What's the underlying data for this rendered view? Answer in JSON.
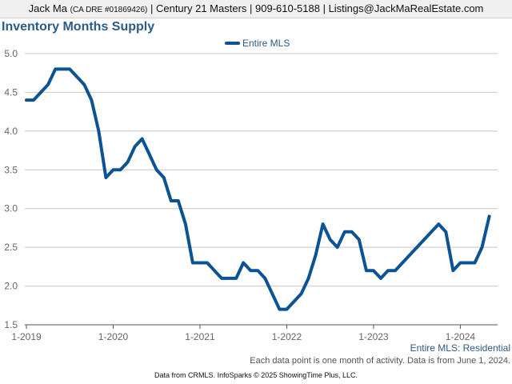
{
  "header": {
    "agent_name": "Jack Ma",
    "dre": "(CA DRE #01869426)",
    "rest": "| Century 21 Masters | 909-610-5188 | Listings@JackMaRealEstate.com"
  },
  "chart_data": {
    "type": "line",
    "title": "Inventory Months Supply",
    "xlabel": "",
    "ylabel": "",
    "x_start": "2019-01",
    "x_tick_labels": [
      "1-2019",
      "1-2020",
      "1-2021",
      "1-2022",
      "1-2023",
      "1-2024"
    ],
    "y_ticks": [
      1.5,
      2.0,
      2.5,
      3.0,
      3.5,
      4.0,
      4.5,
      5.0
    ],
    "y_tick_labels": [
      "1.5",
      "2.0",
      "2.5",
      "3.0",
      "3.5",
      "4.0",
      "4.5",
      "5.0"
    ],
    "ylim": [
      1.5,
      5.0
    ],
    "grid": true,
    "legend_position": "top-center",
    "series": [
      {
        "name": "Entire MLS",
        "color": "#0b5394",
        "values": [
          4.4,
          4.4,
          4.5,
          4.6,
          4.8,
          4.8,
          4.8,
          4.7,
          4.6,
          4.4,
          4.0,
          3.4,
          3.5,
          3.5,
          3.6,
          3.8,
          3.9,
          3.7,
          3.5,
          3.4,
          3.1,
          3.1,
          2.8,
          2.3,
          2.3,
          2.3,
          2.2,
          2.1,
          2.1,
          2.1,
          2.3,
          2.2,
          2.2,
          2.1,
          1.9,
          1.7,
          1.7,
          1.8,
          1.9,
          2.1,
          2.4,
          2.8,
          2.6,
          2.5,
          2.7,
          2.7,
          2.6,
          2.2,
          2.2,
          2.1,
          2.2,
          2.2,
          2.3,
          2.4,
          2.5,
          2.6,
          2.7,
          2.8,
          2.7,
          2.2,
          2.3,
          2.3,
          2.3,
          2.5,
          2.9
        ]
      }
    ]
  },
  "footer": {
    "series_label": "Entire MLS: Residential",
    "note": "Each data point is one month of activity. Data is from June 1, 2024.",
    "source": "Data from CRMLS. InfoSparks © 2025 ShowingTime Plus, LLC."
  }
}
